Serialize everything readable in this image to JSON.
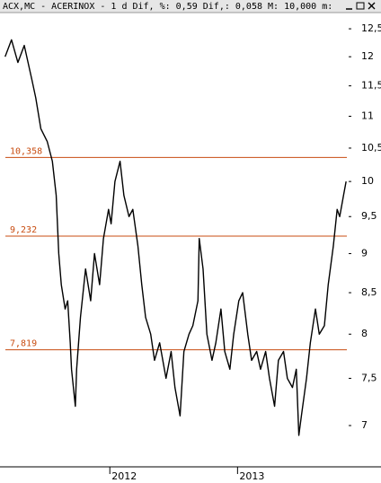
{
  "chart_data": {
    "type": "line",
    "title": "ACX,MC - ACERINOX -  1 d Dif, %: 0,59 Dif,: 0,058 M: 10,000 m:",
    "log_scale": true,
    "color": "#000000",
    "x": [
      2011.18,
      2011.23,
      2011.28,
      2011.33,
      2011.39,
      2011.42,
      2011.46,
      2011.51,
      2011.55,
      2011.58,
      2011.6,
      2011.62,
      2011.65,
      2011.67,
      2011.69,
      2011.7,
      2011.73,
      2011.74,
      2011.77,
      2011.81,
      2011.85,
      2011.88,
      2011.92,
      2011.95,
      2011.99,
      2012.01,
      2012.04,
      2012.08,
      2012.11,
      2012.15,
      2012.18,
      2012.22,
      2012.25,
      2012.28,
      2012.32,
      2012.35,
      2012.39,
      2012.44,
      2012.48,
      2012.51,
      2012.55,
      2012.58,
      2012.62,
      2012.65,
      2012.69,
      2012.7,
      2012.73,
      2012.76,
      2012.8,
      2012.83,
      2012.87,
      2012.9,
      2012.94,
      2012.97,
      2013.01,
      2013.04,
      2013.08,
      2013.11,
      2013.15,
      2013.18,
      2013.22,
      2013.25,
      2013.29,
      2013.32,
      2013.36,
      2013.39,
      2013.43,
      2013.46,
      2013.48,
      2013.5,
      2013.54,
      2013.57,
      2013.61,
      2013.64,
      2013.68,
      2013.71,
      2013.75,
      2013.78,
      2013.8,
      2013.83,
      2013.85
    ],
    "values": [
      12.0,
      12.3,
      11.9,
      12.2,
      11.6,
      11.3,
      10.8,
      10.6,
      10.3,
      9.8,
      9.0,
      8.6,
      8.3,
      8.4,
      7.9,
      7.6,
      7.2,
      7.6,
      8.2,
      8.8,
      8.4,
      9.0,
      8.6,
      9.2,
      9.6,
      9.4,
      10.0,
      10.3,
      9.8,
      9.5,
      9.6,
      9.1,
      8.6,
      8.2,
      8.0,
      7.7,
      7.9,
      7.5,
      7.8,
      7.4,
      7.1,
      7.8,
      8.0,
      8.1,
      8.4,
      9.2,
      8.8,
      8.0,
      7.7,
      7.9,
      8.3,
      7.8,
      7.6,
      8.0,
      8.4,
      8.5,
      8.0,
      7.7,
      7.8,
      7.6,
      7.8,
      7.5,
      7.2,
      7.7,
      7.8,
      7.5,
      7.4,
      7.6,
      6.9,
      7.1,
      7.5,
      7.9,
      8.3,
      8.0,
      8.1,
      8.6,
      9.1,
      9.6,
      9.5,
      9.8,
      10.0
    ],
    "xlim": [
      2011.14,
      2013.87
    ],
    "xticks": [
      2012,
      2013
    ],
    "ylim": [
      6.59,
      12.8
    ],
    "yticks": [
      {
        "value": 7,
        "label": "7"
      },
      {
        "value": 7.5,
        "label": "7,5"
      },
      {
        "value": 8,
        "label": "8"
      },
      {
        "value": 8.5,
        "label": "8,5"
      },
      {
        "value": 9,
        "label": "9"
      },
      {
        "value": 9.5,
        "label": "9,5"
      },
      {
        "value": 10,
        "label": "10"
      },
      {
        "value": 10.5,
        "label": "10,5"
      },
      {
        "value": 11,
        "label": "11"
      },
      {
        "value": 11.5,
        "label": "11,5"
      },
      {
        "value": 12,
        "label": "12"
      },
      {
        "value": 12.5,
        "label": "12,5"
      }
    ],
    "hlines": [
      {
        "value": 10.358,
        "label": "10,358"
      },
      {
        "value": 9.232,
        "label": "9,232"
      },
      {
        "value": 7.819,
        "label": "7,819"
      }
    ],
    "hline_color": "#c84c10"
  }
}
